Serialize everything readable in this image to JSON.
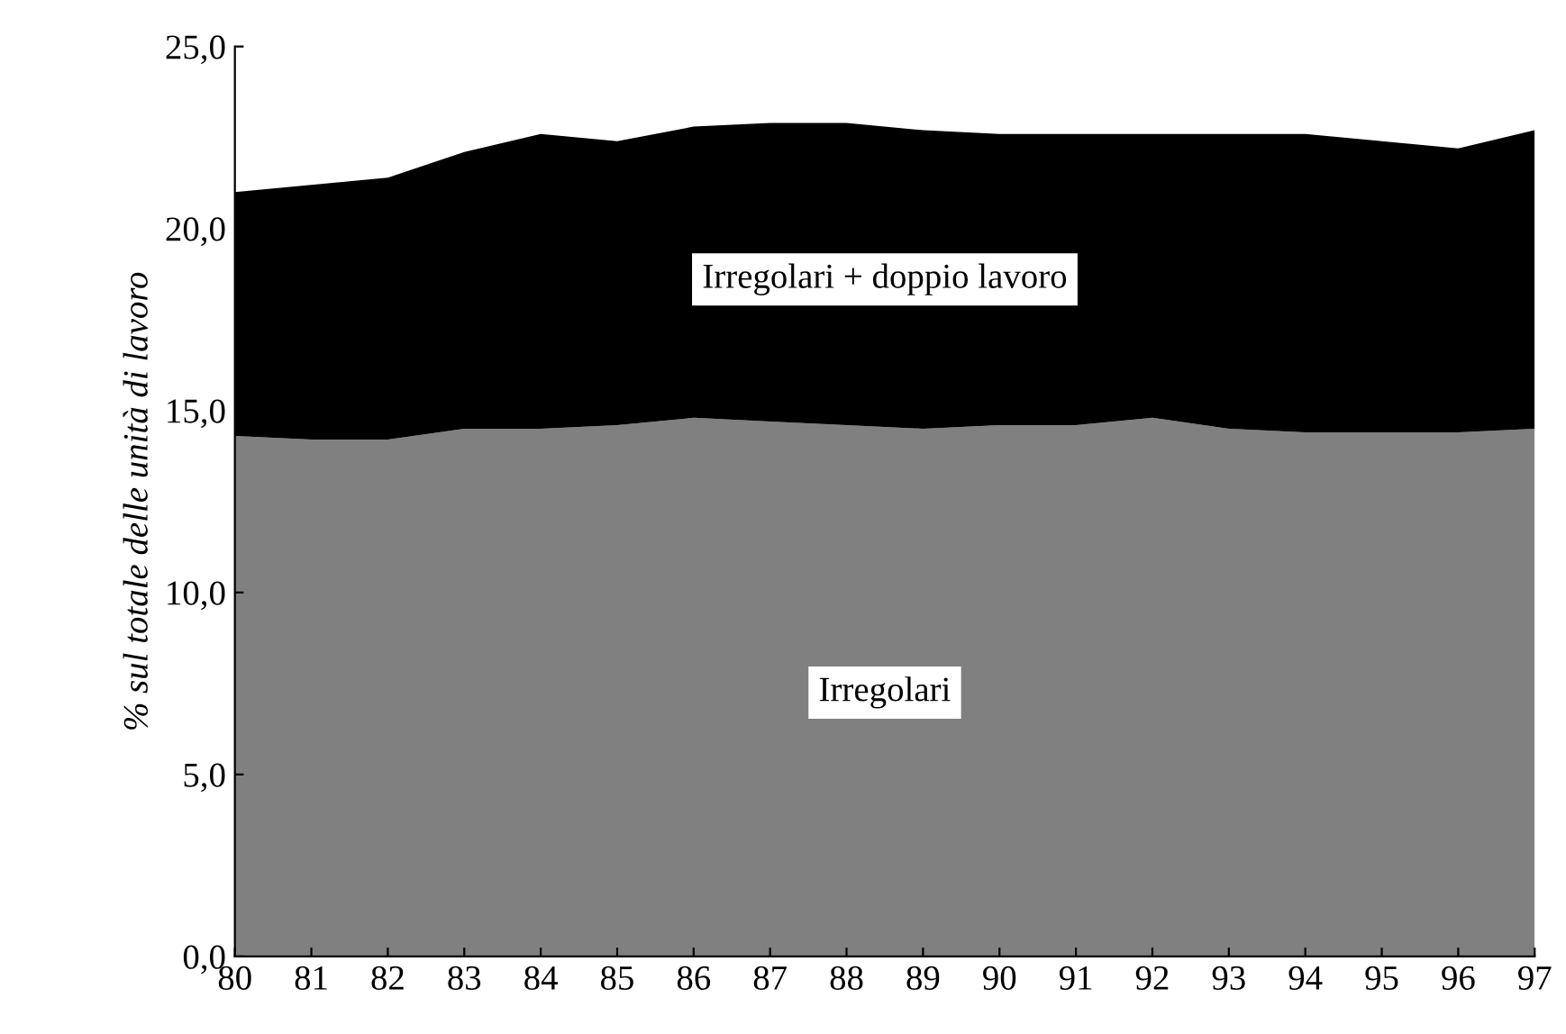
{
  "chart_data": {
    "type": "area",
    "stacked": true,
    "ylabel": "% sul totale delle unità di lavoro",
    "categories": [
      "80",
      "81",
      "82",
      "83",
      "84",
      "85",
      "86",
      "87",
      "88",
      "89",
      "90",
      "91",
      "92",
      "93",
      "94",
      "95",
      "96",
      "97"
    ],
    "series": [
      {
        "name": "Irregolari",
        "color": "#808080",
        "values": [
          14.3,
          14.2,
          14.2,
          14.5,
          14.5,
          14.6,
          14.8,
          14.7,
          14.6,
          14.5,
          14.6,
          14.6,
          14.8,
          14.5,
          14.4,
          14.4,
          14.4,
          14.5
        ]
      },
      {
        "name": "Irregolari + doppio lavoro",
        "color": "#000000",
        "values": [
          6.7,
          7.0,
          7.2,
          7.6,
          8.1,
          7.8,
          8.0,
          8.2,
          8.3,
          8.2,
          8.0,
          8.0,
          7.8,
          8.1,
          8.2,
          8.0,
          7.8,
          8.2
        ]
      }
    ],
    "ylim": [
      0,
      25
    ],
    "yticks": [
      {
        "value": 0,
        "label": "0,0"
      },
      {
        "value": 5,
        "label": "5,0"
      },
      {
        "value": 10,
        "label": "10,0"
      },
      {
        "value": 15,
        "label": "15,0"
      },
      {
        "value": 20,
        "label": "20,0"
      },
      {
        "value": 25,
        "label": "25,0"
      }
    ],
    "grid": false,
    "legend": false
  }
}
